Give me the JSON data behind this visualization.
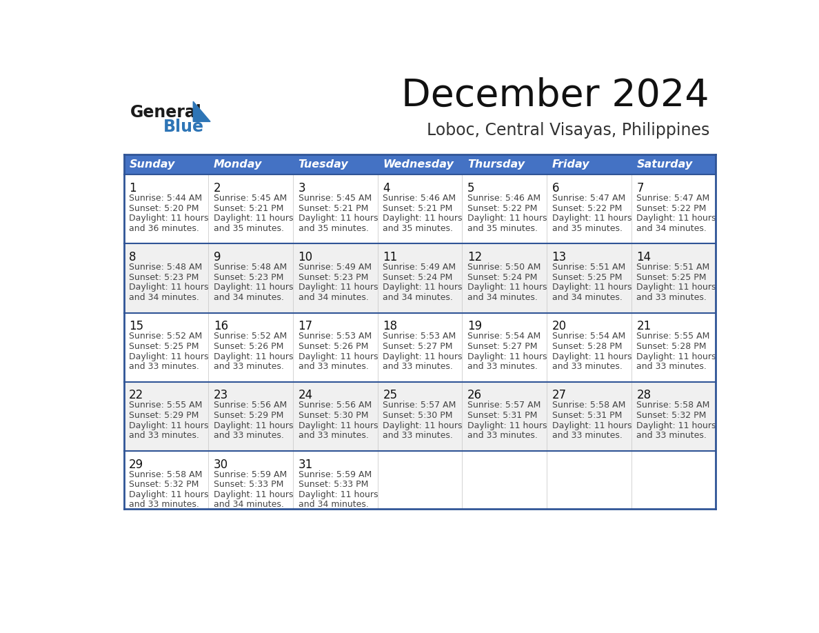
{
  "title": "December 2024",
  "subtitle": "Loboc, Central Visayas, Philippines",
  "days_of_week": [
    "Sunday",
    "Monday",
    "Tuesday",
    "Wednesday",
    "Thursday",
    "Friday",
    "Saturday"
  ],
  "header_bg_color": "#4472C4",
  "header_text_color": "#FFFFFF",
  "row_bg_colors": [
    "#FFFFFF",
    "#F0F0F0",
    "#FFFFFF",
    "#F0F0F0",
    "#FFFFFF"
  ],
  "border_color": "#2F5496",
  "day_num_color": "#111111",
  "cell_text_color": "#444444",
  "logo_general_color": "#1a1a1a",
  "logo_blue_color": "#2E75B6",
  "calendar_data": [
    [
      {
        "day": 1,
        "sunrise": "5:44 AM",
        "sunset": "5:20 PM",
        "daylight_hours": 11,
        "daylight_minutes": 36
      },
      {
        "day": 2,
        "sunrise": "5:45 AM",
        "sunset": "5:21 PM",
        "daylight_hours": 11,
        "daylight_minutes": 35
      },
      {
        "day": 3,
        "sunrise": "5:45 AM",
        "sunset": "5:21 PM",
        "daylight_hours": 11,
        "daylight_minutes": 35
      },
      {
        "day": 4,
        "sunrise": "5:46 AM",
        "sunset": "5:21 PM",
        "daylight_hours": 11,
        "daylight_minutes": 35
      },
      {
        "day": 5,
        "sunrise": "5:46 AM",
        "sunset": "5:22 PM",
        "daylight_hours": 11,
        "daylight_minutes": 35
      },
      {
        "day": 6,
        "sunrise": "5:47 AM",
        "sunset": "5:22 PM",
        "daylight_hours": 11,
        "daylight_minutes": 35
      },
      {
        "day": 7,
        "sunrise": "5:47 AM",
        "sunset": "5:22 PM",
        "daylight_hours": 11,
        "daylight_minutes": 34
      }
    ],
    [
      {
        "day": 8,
        "sunrise": "5:48 AM",
        "sunset": "5:23 PM",
        "daylight_hours": 11,
        "daylight_minutes": 34
      },
      {
        "day": 9,
        "sunrise": "5:48 AM",
        "sunset": "5:23 PM",
        "daylight_hours": 11,
        "daylight_minutes": 34
      },
      {
        "day": 10,
        "sunrise": "5:49 AM",
        "sunset": "5:23 PM",
        "daylight_hours": 11,
        "daylight_minutes": 34
      },
      {
        "day": 11,
        "sunrise": "5:49 AM",
        "sunset": "5:24 PM",
        "daylight_hours": 11,
        "daylight_minutes": 34
      },
      {
        "day": 12,
        "sunrise": "5:50 AM",
        "sunset": "5:24 PM",
        "daylight_hours": 11,
        "daylight_minutes": 34
      },
      {
        "day": 13,
        "sunrise": "5:51 AM",
        "sunset": "5:25 PM",
        "daylight_hours": 11,
        "daylight_minutes": 34
      },
      {
        "day": 14,
        "sunrise": "5:51 AM",
        "sunset": "5:25 PM",
        "daylight_hours": 11,
        "daylight_minutes": 33
      }
    ],
    [
      {
        "day": 15,
        "sunrise": "5:52 AM",
        "sunset": "5:25 PM",
        "daylight_hours": 11,
        "daylight_minutes": 33
      },
      {
        "day": 16,
        "sunrise": "5:52 AM",
        "sunset": "5:26 PM",
        "daylight_hours": 11,
        "daylight_minutes": 33
      },
      {
        "day": 17,
        "sunrise": "5:53 AM",
        "sunset": "5:26 PM",
        "daylight_hours": 11,
        "daylight_minutes": 33
      },
      {
        "day": 18,
        "sunrise": "5:53 AM",
        "sunset": "5:27 PM",
        "daylight_hours": 11,
        "daylight_minutes": 33
      },
      {
        "day": 19,
        "sunrise": "5:54 AM",
        "sunset": "5:27 PM",
        "daylight_hours": 11,
        "daylight_minutes": 33
      },
      {
        "day": 20,
        "sunrise": "5:54 AM",
        "sunset": "5:28 PM",
        "daylight_hours": 11,
        "daylight_minutes": 33
      },
      {
        "day": 21,
        "sunrise": "5:55 AM",
        "sunset": "5:28 PM",
        "daylight_hours": 11,
        "daylight_minutes": 33
      }
    ],
    [
      {
        "day": 22,
        "sunrise": "5:55 AM",
        "sunset": "5:29 PM",
        "daylight_hours": 11,
        "daylight_minutes": 33
      },
      {
        "day": 23,
        "sunrise": "5:56 AM",
        "sunset": "5:29 PM",
        "daylight_hours": 11,
        "daylight_minutes": 33
      },
      {
        "day": 24,
        "sunrise": "5:56 AM",
        "sunset": "5:30 PM",
        "daylight_hours": 11,
        "daylight_minutes": 33
      },
      {
        "day": 25,
        "sunrise": "5:57 AM",
        "sunset": "5:30 PM",
        "daylight_hours": 11,
        "daylight_minutes": 33
      },
      {
        "day": 26,
        "sunrise": "5:57 AM",
        "sunset": "5:31 PM",
        "daylight_hours": 11,
        "daylight_minutes": 33
      },
      {
        "day": 27,
        "sunrise": "5:58 AM",
        "sunset": "5:31 PM",
        "daylight_hours": 11,
        "daylight_minutes": 33
      },
      {
        "day": 28,
        "sunrise": "5:58 AM",
        "sunset": "5:32 PM",
        "daylight_hours": 11,
        "daylight_minutes": 33
      }
    ],
    [
      {
        "day": 29,
        "sunrise": "5:58 AM",
        "sunset": "5:32 PM",
        "daylight_hours": 11,
        "daylight_minutes": 33
      },
      {
        "day": 30,
        "sunrise": "5:59 AM",
        "sunset": "5:33 PM",
        "daylight_hours": 11,
        "daylight_minutes": 34
      },
      {
        "day": 31,
        "sunrise": "5:59 AM",
        "sunset": "5:33 PM",
        "daylight_hours": 11,
        "daylight_minutes": 34
      },
      null,
      null,
      null,
      null
    ]
  ]
}
